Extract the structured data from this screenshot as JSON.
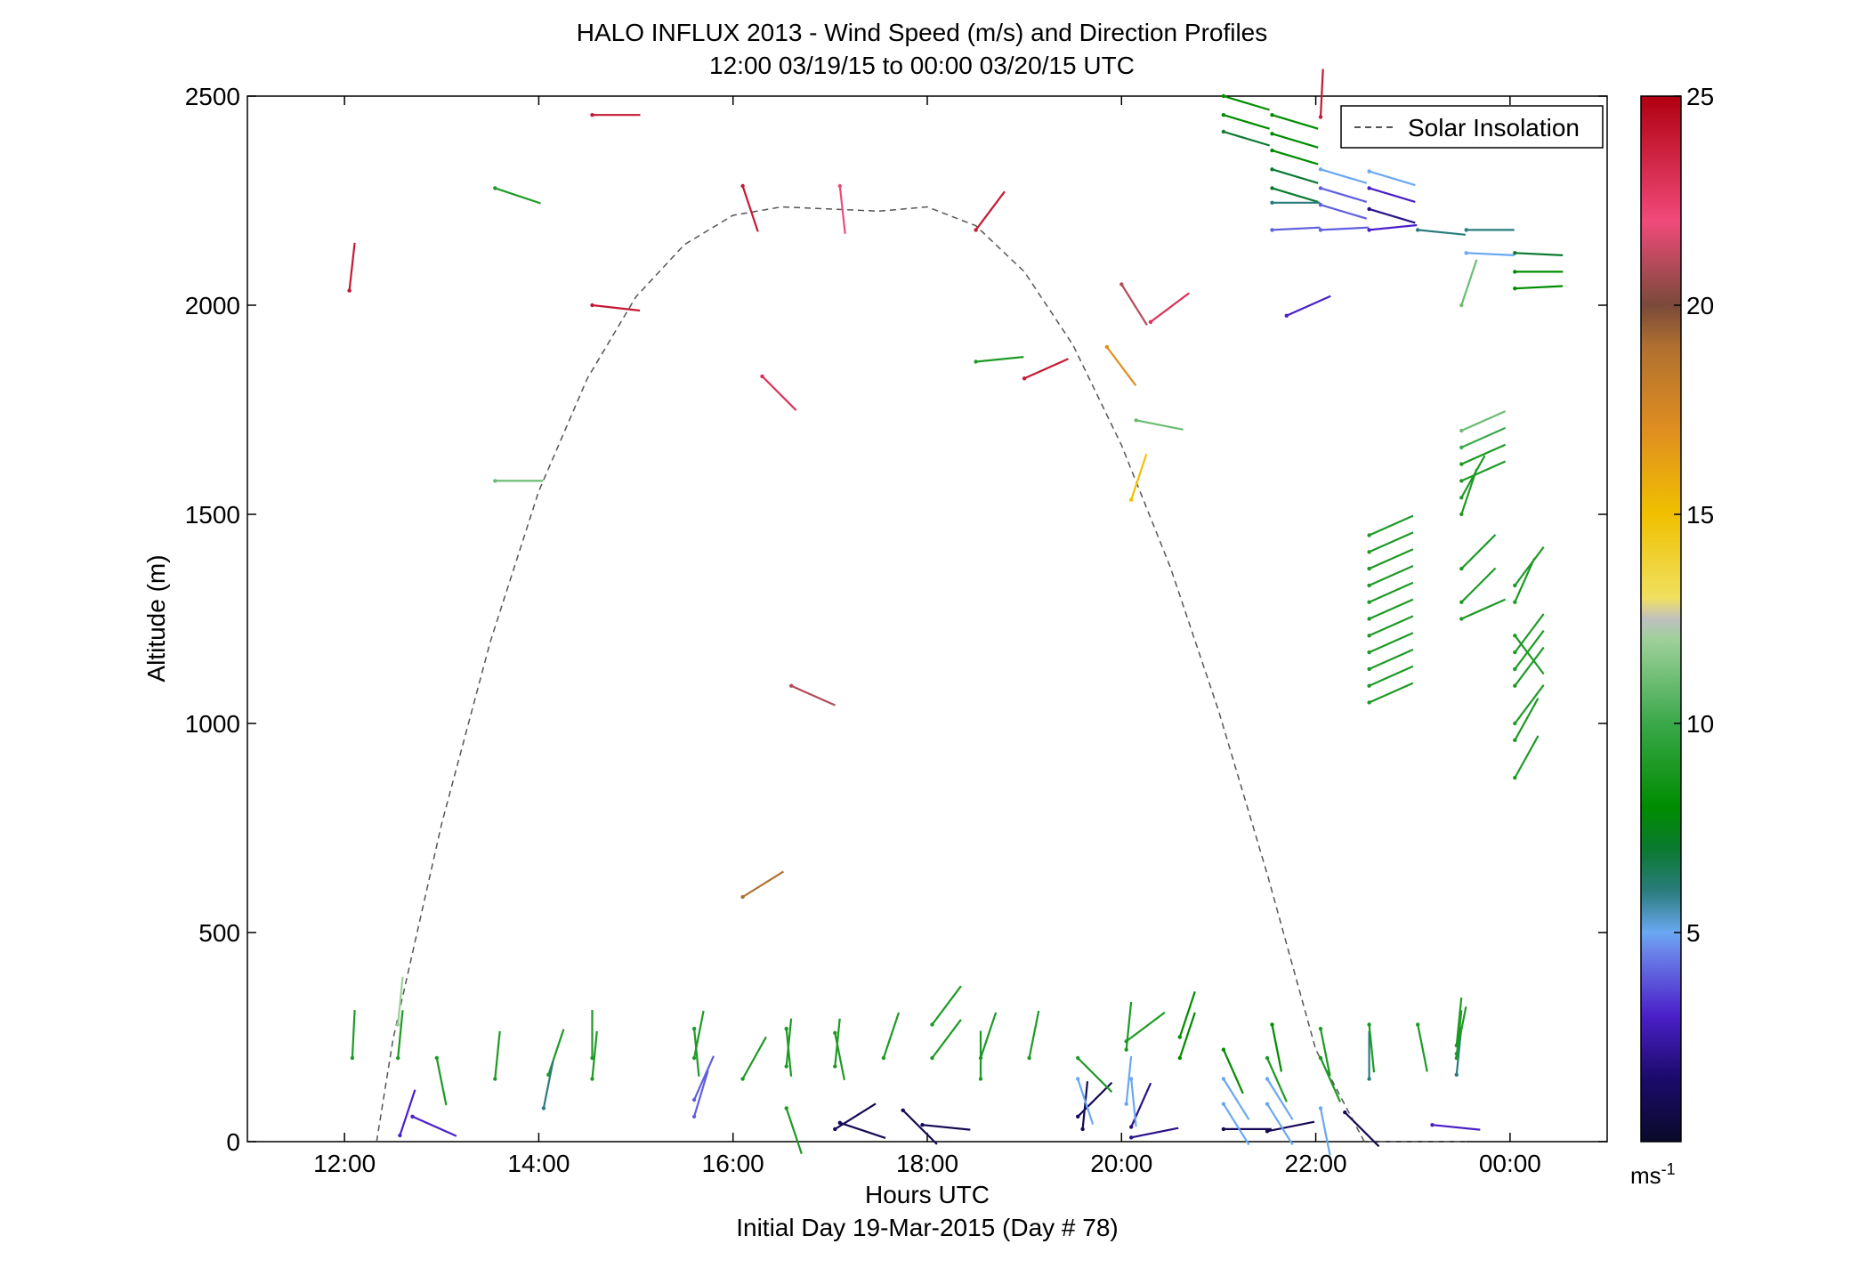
{
  "chart_data": {
    "type": "scatter",
    "title": "HALO INFLUX 2013 - Wind Speed (m/s) and Direction Profiles",
    "subtitle": "12:00 03/19/15 to 00:00 03/20/15  UTC",
    "xlabel": "Hours UTC",
    "xlabel2": "Initial Day 19-Mar-2015 (Day # 78)",
    "ylabel": "Altitude (m)",
    "xlim": [
      11.0,
      25.0
    ],
    "ylim": [
      0,
      2500
    ],
    "x_ticks": [
      12,
      14,
      16,
      18,
      20,
      22,
      24
    ],
    "x_tick_labels": [
      "12:00",
      "14:00",
      "16:00",
      "18:00",
      "20:00",
      "22:00",
      "00:00"
    ],
    "y_ticks": [
      0,
      500,
      1000,
      1500,
      2000,
      2500
    ],
    "y_tick_labels": [
      "0",
      "500",
      "1000",
      "1500",
      "2000",
      "2500"
    ],
    "legend": {
      "entries": [
        "Solar Insolation"
      ],
      "position": "top-right"
    },
    "colorbar": {
      "min": 0,
      "max": 25,
      "ticks": [
        5,
        10,
        15,
        20,
        25
      ],
      "tick_labels": [
        "5",
        "10",
        "15",
        "20",
        "25"
      ],
      "unit_label": "ms",
      "unit_exp": "-1"
    },
    "solar_insolation": {
      "x": [
        12.33,
        12.5,
        13.0,
        13.5,
        14.0,
        14.5,
        15.0,
        15.5,
        16.0,
        16.5,
        17.0,
        17.5,
        18.0,
        18.5,
        19.0,
        19.5,
        20.0,
        20.5,
        21.0,
        21.5,
        22.0,
        22.5,
        23.0,
        23.55
      ],
      "y": [
        0,
        245,
        760,
        1195,
        1555,
        1825,
        2020,
        2145,
        2215,
        2235,
        2230,
        2225,
        2235,
        2190,
        2080,
        1905,
        1665,
        1375,
        1030,
        640,
        220,
        -50,
        -50,
        0
      ]
    },
    "wind_barbs": [
      {
        "t": 12.05,
        "alt": 2035,
        "u": 0.1,
        "v": 0.9,
        "speed": 24
      },
      {
        "t": 14.55,
        "alt": 2455,
        "u": 0.9,
        "v": 0.0,
        "speed": 24
      },
      {
        "t": 14.55,
        "alt": 2000,
        "u": 0.9,
        "v": -0.1,
        "speed": 24
      },
      {
        "t": 16.1,
        "alt": 2285,
        "u": 0.3,
        "v": -0.9,
        "speed": 24
      },
      {
        "t": 17.1,
        "alt": 2285,
        "u": 0.1,
        "v": -0.9,
        "speed": 22
      },
      {
        "t": 18.5,
        "alt": 2180,
        "u": 0.6,
        "v": 0.8,
        "speed": 24
      },
      {
        "t": 16.3,
        "alt": 1830,
        "u": 0.7,
        "v": -0.7,
        "speed": 23
      },
      {
        "t": 19.0,
        "alt": 1825,
        "u": 0.9,
        "v": 0.4,
        "speed": 24
      },
      {
        "t": 20.0,
        "alt": 2050,
        "u": 0.5,
        "v": -0.8,
        "speed": 21
      },
      {
        "t": 20.3,
        "alt": 1960,
        "u": 0.8,
        "v": 0.6,
        "speed": 23
      },
      {
        "t": 22.05,
        "alt": 2450,
        "u": 0.05,
        "v": 1.0,
        "speed": 24
      },
      {
        "t": 16.6,
        "alt": 1090,
        "u": 0.9,
        "v": -0.4,
        "speed": 21
      },
      {
        "t": 16.1,
        "alt": 585,
        "u": 0.8,
        "v": 0.5,
        "speed": 19
      },
      {
        "t": 19.85,
        "alt": 1900,
        "u": 0.6,
        "v": -0.8,
        "speed": 17
      },
      {
        "t": 20.1,
        "alt": 1535,
        "u": 0.3,
        "v": 0.9,
        "speed": 15
      },
      {
        "t": 13.55,
        "alt": 2280,
        "u": 0.9,
        "v": -0.3,
        "speed": 9
      },
      {
        "t": 18.5,
        "alt": 1865,
        "u": 1.0,
        "v": 0.1,
        "speed": 9
      },
      {
        "t": 13.55,
        "alt": 1580,
        "u": 1.0,
        "v": 0.0,
        "speed": 11
      },
      {
        "t": 20.15,
        "alt": 1725,
        "u": 1.0,
        "v": -0.2,
        "speed": 11
      },
      {
        "t": 23.5,
        "alt": 2000,
        "u": 0.3,
        "v": 0.9,
        "speed": 11
      },
      {
        "t": 21.7,
        "alt": 1975,
        "u": 0.9,
        "v": 0.4,
        "speed": 3
      },
      {
        "t": 12.57,
        "alt": 15,
        "u": 0.3,
        "v": 0.9,
        "speed": 3
      },
      {
        "t": 12.7,
        "alt": 60,
        "u": 0.9,
        "v": -0.4,
        "speed": 3
      },
      {
        "t": 17.05,
        "alt": 30,
        "u": 0.8,
        "v": 0.5,
        "speed": 1
      },
      {
        "t": 17.1,
        "alt": 45,
        "u": 0.9,
        "v": -0.3,
        "speed": 1
      },
      {
        "t": 17.95,
        "alt": 40,
        "u": 1.0,
        "v": -0.1,
        "speed": 1
      },
      {
        "t": 17.75,
        "alt": 75,
        "u": 0.7,
        "v": -0.7,
        "speed": 1
      },
      {
        "t": 19.55,
        "alt": 60,
        "u": 0.7,
        "v": 0.7,
        "speed": 1
      },
      {
        "t": 19.6,
        "alt": 30,
        "u": 0.1,
        "v": 1.0,
        "speed": 1
      },
      {
        "t": 20.1,
        "alt": 10,
        "u": 1.0,
        "v": 0.2,
        "speed": 2
      },
      {
        "t": 20.1,
        "alt": 35,
        "u": 0.4,
        "v": 0.9,
        "speed": 2
      },
      {
        "t": 21.05,
        "alt": 30,
        "u": 1.0,
        "v": 0.0,
        "speed": 1
      },
      {
        "t": 21.5,
        "alt": 25,
        "u": 1.0,
        "v": 0.2,
        "speed": 1
      },
      {
        "t": 22.3,
        "alt": 70,
        "u": 0.7,
        "v": -0.7,
        "speed": 1
      },
      {
        "t": 23.2,
        "alt": 40,
        "u": 1.0,
        "v": -0.1,
        "speed": 3
      },
      {
        "t": 12.08,
        "alt": 200,
        "u": 0.05,
        "v": 1.0,
        "speed": 9
      },
      {
        "t": 12.55,
        "alt": 280,
        "u": 0.1,
        "v": 1.0,
        "speed": 12
      },
      {
        "t": 12.55,
        "alt": 200,
        "u": 0.1,
        "v": 1.0,
        "speed": 9
      },
      {
        "t": 12.95,
        "alt": 200,
        "u": 0.2,
        "v": -1.0,
        "speed": 9
      },
      {
        "t": 13.55,
        "alt": 150,
        "u": 0.1,
        "v": 1.0,
        "speed": 9
      },
      {
        "t": 14.1,
        "alt": 160,
        "u": 0.3,
        "v": 0.9,
        "speed": 9
      },
      {
        "t": 14.05,
        "alt": 80,
        "u": 0.2,
        "v": 1.0,
        "speed": 6
      },
      {
        "t": 14.55,
        "alt": 150,
        "u": 0.1,
        "v": 1.0,
        "speed": 9
      },
      {
        "t": 14.55,
        "alt": 200,
        "u": 0.0,
        "v": 1.0,
        "speed": 9
      },
      {
        "t": 15.6,
        "alt": 60,
        "u": 0.3,
        "v": 1.0,
        "speed": 4
      },
      {
        "t": 15.6,
        "alt": 100,
        "u": 0.4,
        "v": 0.9,
        "speed": 4
      },
      {
        "t": 15.6,
        "alt": 200,
        "u": 0.2,
        "v": 1.0,
        "speed": 9
      },
      {
        "t": 15.6,
        "alt": 270,
        "u": 0.1,
        "v": -1.0,
        "speed": 9
      },
      {
        "t": 16.1,
        "alt": 150,
        "u": 0.5,
        "v": 0.9,
        "speed": 9
      },
      {
        "t": 16.55,
        "alt": 80,
        "u": 0.3,
        "v": -0.9,
        "speed": 9
      },
      {
        "t": 16.55,
        "alt": 180,
        "u": 0.1,
        "v": 1.0,
        "speed": 9
      },
      {
        "t": 16.55,
        "alt": 270,
        "u": 0.1,
        "v": -1.0,
        "speed": 9
      },
      {
        "t": 17.05,
        "alt": 180,
        "u": 0.1,
        "v": 1.0,
        "speed": 9
      },
      {
        "t": 17.05,
        "alt": 260,
        "u": 0.2,
        "v": -1.0,
        "speed": 9
      },
      {
        "t": 17.55,
        "alt": 200,
        "u": 0.3,
        "v": 0.9,
        "speed": 9
      },
      {
        "t": 18.05,
        "alt": 280,
        "u": 0.6,
        "v": 0.8,
        "speed": 9
      },
      {
        "t": 18.05,
        "alt": 200,
        "u": 0.6,
        "v": 0.8,
        "speed": 9
      },
      {
        "t": 18.55,
        "alt": 150,
        "u": 0.0,
        "v": 1.0,
        "speed": 9
      },
      {
        "t": 18.55,
        "alt": 200,
        "u": 0.3,
        "v": 0.9,
        "speed": 9
      },
      {
        "t": 19.05,
        "alt": 200,
        "u": 0.2,
        "v": 1.0,
        "speed": 9
      },
      {
        "t": 19.55,
        "alt": 150,
        "u": 0.3,
        "v": -0.9,
        "speed": 5
      },
      {
        "t": 19.55,
        "alt": 200,
        "u": 0.7,
        "v": -0.7,
        "speed": 9
      },
      {
        "t": 20.05,
        "alt": 220,
        "u": 0.1,
        "v": 1.0,
        "speed": 9
      },
      {
        "t": 20.05,
        "alt": 240,
        "u": 0.8,
        "v": 0.6,
        "speed": 9
      },
      {
        "t": 20.05,
        "alt": 90,
        "u": 0.1,
        "v": 1.0,
        "speed": 5
      },
      {
        "t": 20.1,
        "alt": 150,
        "u": 0.1,
        "v": -1.0,
        "speed": 5
      },
      {
        "t": 20.6,
        "alt": 200,
        "u": 0.3,
        "v": 0.9,
        "speed": 8
      },
      {
        "t": 20.6,
        "alt": 250,
        "u": 0.3,
        "v": 0.9,
        "speed": 8
      },
      {
        "t": 21.05,
        "alt": 90,
        "u": 0.5,
        "v": -0.8,
        "speed": 5
      },
      {
        "t": 21.05,
        "alt": 150,
        "u": 0.5,
        "v": -0.8,
        "speed": 5
      },
      {
        "t": 21.05,
        "alt": 220,
        "u": 0.4,
        "v": -0.9,
        "speed": 8
      },
      {
        "t": 21.5,
        "alt": 90,
        "u": 0.5,
        "v": -0.8,
        "speed": 5
      },
      {
        "t": 21.5,
        "alt": 150,
        "u": 0.5,
        "v": -0.8,
        "speed": 5
      },
      {
        "t": 21.5,
        "alt": 200,
        "u": 0.4,
        "v": -0.9,
        "speed": 9
      },
      {
        "t": 21.55,
        "alt": 280,
        "u": 0.2,
        "v": -1.0,
        "speed": 8
      },
      {
        "t": 22.05,
        "alt": 80,
        "u": 0.2,
        "v": -1.0,
        "speed": 5
      },
      {
        "t": 22.05,
        "alt": 200,
        "u": 0.4,
        "v": -0.9,
        "speed": 9
      },
      {
        "t": 22.05,
        "alt": 270,
        "u": 0.2,
        "v": -1.0,
        "speed": 9
      },
      {
        "t": 22.55,
        "alt": 150,
        "u": 0.0,
        "v": 1.0,
        "speed": 6
      },
      {
        "t": 22.55,
        "alt": 280,
        "u": 0.1,
        "v": -1.0,
        "speed": 9
      },
      {
        "t": 23.05,
        "alt": 280,
        "u": 0.2,
        "v": -1.0,
        "speed": 9
      },
      {
        "t": 23.45,
        "alt": 160,
        "u": 0.1,
        "v": 1.0,
        "speed": 6
      },
      {
        "t": 23.45,
        "alt": 200,
        "u": 0.1,
        "v": 1.0,
        "speed": 9
      },
      {
        "t": 23.45,
        "alt": 230,
        "u": 0.1,
        "v": 1.0,
        "speed": 9
      },
      {
        "t": 23.45,
        "alt": 210,
        "u": 0.2,
        "v": 1.0,
        "speed": 9
      },
      {
        "t": 21.05,
        "alt": 2500,
        "u": 1.0,
        "v": -0.3,
        "speed": 8
      },
      {
        "t": 21.05,
        "alt": 2455,
        "u": 1.0,
        "v": -0.3,
        "speed": 8
      },
      {
        "t": 21.05,
        "alt": 2415,
        "u": 1.0,
        "v": -0.3,
        "speed": 7
      },
      {
        "t": 21.55,
        "alt": 2455,
        "u": 1.0,
        "v": -0.3,
        "speed": 8
      },
      {
        "t": 21.55,
        "alt": 2410,
        "u": 1.0,
        "v": -0.3,
        "speed": 8
      },
      {
        "t": 21.55,
        "alt": 2370,
        "u": 1.0,
        "v": -0.3,
        "speed": 8
      },
      {
        "t": 21.55,
        "alt": 2325,
        "u": 1.0,
        "v": -0.3,
        "speed": 7
      },
      {
        "t": 21.55,
        "alt": 2280,
        "u": 1.0,
        "v": -0.3,
        "speed": 7
      },
      {
        "t": 21.55,
        "alt": 2245,
        "u": 1.0,
        "v": 0.0,
        "speed": 6
      },
      {
        "t": 21.55,
        "alt": 2180,
        "u": 1.0,
        "v": 0.05,
        "speed": 4
      },
      {
        "t": 22.05,
        "alt": 2325,
        "u": 1.0,
        "v": -0.3,
        "speed": 5
      },
      {
        "t": 22.05,
        "alt": 2280,
        "u": 1.0,
        "v": -0.3,
        "speed": 4
      },
      {
        "t": 22.05,
        "alt": 2240,
        "u": 1.0,
        "v": -0.3,
        "speed": 4
      },
      {
        "t": 22.05,
        "alt": 2180,
        "u": 1.0,
        "v": 0.05,
        "speed": 4
      },
      {
        "t": 22.55,
        "alt": 2320,
        "u": 1.0,
        "v": -0.3,
        "speed": 5
      },
      {
        "t": 22.55,
        "alt": 2280,
        "u": 1.0,
        "v": -0.3,
        "speed": 3
      },
      {
        "t": 22.55,
        "alt": 2230,
        "u": 1.0,
        "v": -0.3,
        "speed": 2
      },
      {
        "t": 22.55,
        "alt": 2180,
        "u": 1.0,
        "v": 0.1,
        "speed": 3
      },
      {
        "t": 23.05,
        "alt": 2180,
        "u": 1.0,
        "v": -0.1,
        "speed": 6
      },
      {
        "t": 23.55,
        "alt": 2180,
        "u": 1.0,
        "v": 0.0,
        "speed": 6
      },
      {
        "t": 23.55,
        "alt": 2125,
        "u": 1.0,
        "v": -0.05,
        "speed": 5
      },
      {
        "t": 24.05,
        "alt": 2125,
        "u": 1.0,
        "v": -0.05,
        "speed": 7
      },
      {
        "t": 24.05,
        "alt": 2080,
        "u": 1.0,
        "v": 0.0,
        "speed": 8
      },
      {
        "t": 24.05,
        "alt": 2040,
        "u": 1.0,
        "v": 0.05,
        "speed": 8
      },
      {
        "t": 23.5,
        "alt": 1700,
        "u": 0.9,
        "v": 0.4,
        "speed": 11
      },
      {
        "t": 23.5,
        "alt": 1660,
        "u": 0.9,
        "v": 0.4,
        "speed": 10
      },
      {
        "t": 23.5,
        "alt": 1620,
        "u": 0.9,
        "v": 0.4,
        "speed": 9
      },
      {
        "t": 23.5,
        "alt": 1580,
        "u": 0.9,
        "v": 0.4,
        "speed": 9
      },
      {
        "t": 23.5,
        "alt": 1540,
        "u": 0.5,
        "v": 0.9,
        "speed": 9
      },
      {
        "t": 23.5,
        "alt": 1500,
        "u": 0.3,
        "v": 0.9,
        "speed": 9
      },
      {
        "t": 22.55,
        "alt": 1450,
        "u": 0.9,
        "v": 0.4,
        "speed": 9
      },
      {
        "t": 22.55,
        "alt": 1410,
        "u": 0.9,
        "v": 0.4,
        "speed": 9
      },
      {
        "t": 22.55,
        "alt": 1370,
        "u": 0.9,
        "v": 0.4,
        "speed": 9
      },
      {
        "t": 22.55,
        "alt": 1330,
        "u": 0.9,
        "v": 0.4,
        "speed": 9
      },
      {
        "t": 22.55,
        "alt": 1290,
        "u": 0.9,
        "v": 0.4,
        "speed": 9
      },
      {
        "t": 22.55,
        "alt": 1250,
        "u": 0.9,
        "v": 0.4,
        "speed": 9
      },
      {
        "t": 22.55,
        "alt": 1210,
        "u": 0.9,
        "v": 0.4,
        "speed": 9
      },
      {
        "t": 22.55,
        "alt": 1170,
        "u": 0.9,
        "v": 0.4,
        "speed": 9
      },
      {
        "t": 22.55,
        "alt": 1130,
        "u": 0.9,
        "v": 0.4,
        "speed": 9
      },
      {
        "t": 22.55,
        "alt": 1090,
        "u": 0.9,
        "v": 0.4,
        "speed": 9
      },
      {
        "t": 22.55,
        "alt": 1050,
        "u": 0.9,
        "v": 0.4,
        "speed": 9
      },
      {
        "t": 23.5,
        "alt": 1370,
        "u": 0.7,
        "v": 0.7,
        "speed": 9
      },
      {
        "t": 23.5,
        "alt": 1290,
        "u": 0.7,
        "v": 0.7,
        "speed": 9
      },
      {
        "t": 23.5,
        "alt": 1250,
        "u": 0.9,
        "v": 0.4,
        "speed": 9
      },
      {
        "t": 24.05,
        "alt": 1330,
        "u": 0.6,
        "v": 0.8,
        "speed": 9
      },
      {
        "t": 24.05,
        "alt": 1290,
        "u": 0.4,
        "v": 0.9,
        "speed": 9
      },
      {
        "t": 24.05,
        "alt": 1210,
        "u": 0.6,
        "v": -0.8,
        "speed": 9
      },
      {
        "t": 24.05,
        "alt": 1170,
        "u": 0.6,
        "v": 0.8,
        "speed": 9
      },
      {
        "t": 24.05,
        "alt": 1130,
        "u": 0.6,
        "v": 0.8,
        "speed": 9
      },
      {
        "t": 24.05,
        "alt": 1090,
        "u": 0.6,
        "v": 0.8,
        "speed": 9
      },
      {
        "t": 24.05,
        "alt": 1000,
        "u": 0.6,
        "v": 0.8,
        "speed": 9
      },
      {
        "t": 24.05,
        "alt": 960,
        "u": 0.5,
        "v": 0.9,
        "speed": 9
      },
      {
        "t": 24.05,
        "alt": 870,
        "u": 0.5,
        "v": 0.9,
        "speed": 9
      }
    ]
  }
}
